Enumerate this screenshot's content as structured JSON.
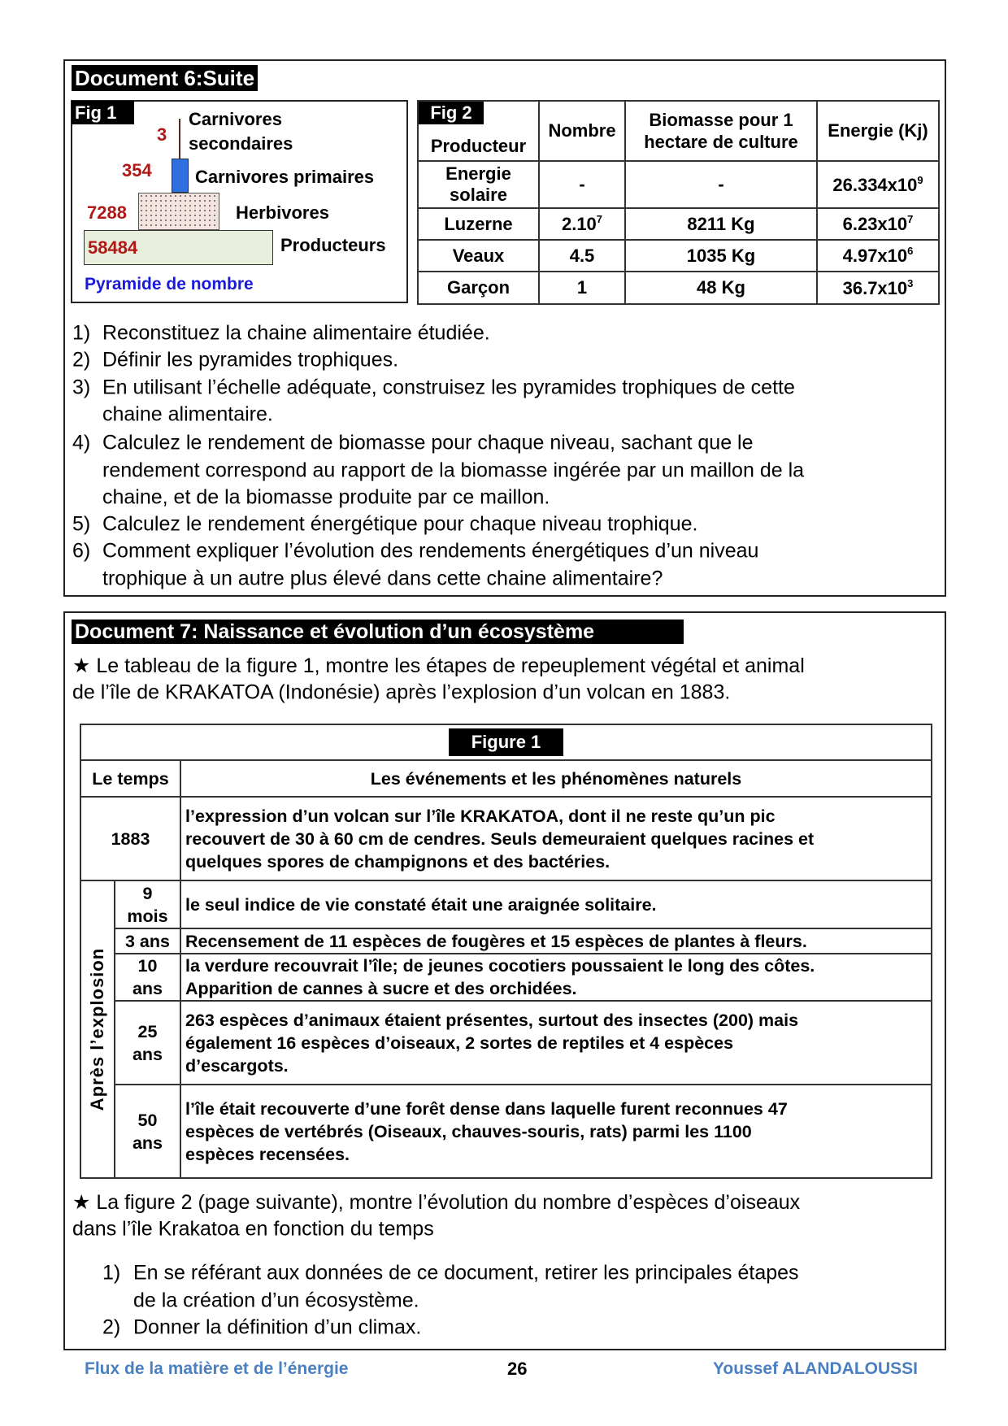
{
  "doc6": {
    "title": "Document 6:Suite",
    "fig1": {
      "label": "Fig 1",
      "caption": "Pyramide de nombre",
      "levels": [
        {
          "name_line1": "Carnivores",
          "name_line2": "secondaires",
          "value": "3"
        },
        {
          "name": "Carnivores primaires",
          "value": "354"
        },
        {
          "name": "Herbivores",
          "value": "7288"
        },
        {
          "name": "Producteurs",
          "value": "58484"
        }
      ],
      "colors": {
        "numbers": "#b01818",
        "carnivores_primaires": "#2f6fe0",
        "producteurs": "#e8eedc",
        "caption": "#1a1adc"
      }
    },
    "fig2": {
      "label": "Fig 2",
      "headers": [
        "Producteur",
        "Nombre",
        "Biomasse pour 1 hectare de culture",
        "Energie (Kj)"
      ],
      "header_biomasse_line1": "Biomasse pour 1",
      "header_biomasse_line2": "hectare de culture",
      "rows": [
        {
          "name_line1": "Energie",
          "name_line2": "solaire",
          "nombre": "-",
          "biomasse": "-",
          "energie_base": "26.334x10",
          "energie_exp": "9"
        },
        {
          "name": "Luzerne",
          "nombre_base": "2.10",
          "nombre_exp": "7",
          "biomasse": "8211 Kg",
          "energie_base": "6.23x10",
          "energie_exp": "7"
        },
        {
          "name": "Veaux",
          "nombre": "4.5",
          "biomasse": "1035 Kg",
          "energie_base": "4.97x10",
          "energie_exp": "6"
        },
        {
          "name": "Garçon",
          "nombre": "1",
          "biomasse": "48 Kg",
          "energie_base": "36.7x10",
          "energie_exp": "3"
        }
      ]
    },
    "questions": [
      {
        "num": "1)",
        "lines": [
          "Reconstituez la chaine alimentaire étudiée."
        ]
      },
      {
        "num": "2)",
        "lines": [
          "Définir les pyramides trophiques."
        ]
      },
      {
        "num": "3)",
        "lines": [
          "En utilisant l’échelle adéquate, construisez les pyramides trophiques de cette",
          "chaine alimentaire."
        ]
      },
      {
        "num": "4)",
        "lines": [
          "Calculez le rendement de biomasse pour chaque niveau, sachant que le",
          "rendement correspond au rapport de la biomasse ingérée par un maillon de la",
          "chaine, et de la biomasse produite par ce maillon."
        ]
      },
      {
        "num": "5)",
        "lines": [
          "Calculez le rendement énergétique pour chaque niveau trophique."
        ]
      },
      {
        "num": "6)",
        "lines": [
          "Comment expliquer l’évolution des rendements énergétiques d’un niveau",
          "trophique à un autre plus élevé dans cette chaine alimentaire?"
        ]
      }
    ]
  },
  "doc7": {
    "title": "Document 7: Naissance et évolution d’un écosystème",
    "intro_line1": "★ Le tableau de la figure 1, montre les étapes de repeuplement végétal et animal",
    "intro_line2": "de l’île de KRAKATOA (Indonésie) après l’explosion d’un volcan en 1883.",
    "figure_label": "Figure 1",
    "col_time": "Le temps",
    "col_events": "Les événements et les phénomènes naturels",
    "side_label": "Après l’explosion",
    "row_1883": {
      "time": "1883",
      "lines": [
        "l’expression d’un volcan sur l’île KRAKATOA, dont il ne reste qu’un pic",
        "recouvert de 30 à 60 cm de cendres. Seuls demeuraient quelques racines et",
        "quelques spores de champignons et des bactéries."
      ]
    },
    "rows": [
      {
        "time_line1": "9",
        "time_line2": "mois",
        "lines": [
          "le seul indice de vie constaté était une araignée solitaire."
        ]
      },
      {
        "time_line1": "3 ans",
        "time_line2": "",
        "lines": [
          "Recensement de 11 espèces de fougères et 15 espèces de plantes à fleurs."
        ]
      },
      {
        "time_line1": "10",
        "time_line2": "ans",
        "lines": [
          "la verdure recouvrait l’île; de jeunes cocotiers poussaient le long des côtes.",
          "Apparition de cannes à sucre et des orchidées."
        ]
      },
      {
        "time_line1": "25",
        "time_line2": "ans",
        "lines": [
          "263 espèces d’animaux étaient présentes, surtout des insectes (200) mais",
          "également 16 espèces d’oiseaux, 2 sortes de reptiles et 4 espèces",
          "d’escargots."
        ]
      },
      {
        "time_line1": "50",
        "time_line2": "ans",
        "lines": [
          "l’île était recouverte d’une forêt dense dans laquelle furent reconnues 47",
          "espèces de vertébrés (Oiseaux, chauves-souris, rats) parmi les 1100",
          "espèces recensées."
        ]
      }
    ],
    "fig2_line1": "★ La figure 2 (page suivante), montre l’évolution du nombre d’espèces d’oiseaux",
    "fig2_line2": "dans l’île Krakatoa en fonction du temps",
    "questions": [
      {
        "num": "1)",
        "lines": [
          "En se référant aux données de ce document, retirer les principales étapes",
          "de la création d’un écosystème."
        ]
      },
      {
        "num": "2)",
        "lines": [
          "Donner la définition d’un climax."
        ]
      }
    ]
  },
  "footer": {
    "left": "Flux de la matière et de l’énergie",
    "page": "26",
    "right": "Youssef ALANDALOUSSI",
    "color": "#4a7fc0"
  }
}
